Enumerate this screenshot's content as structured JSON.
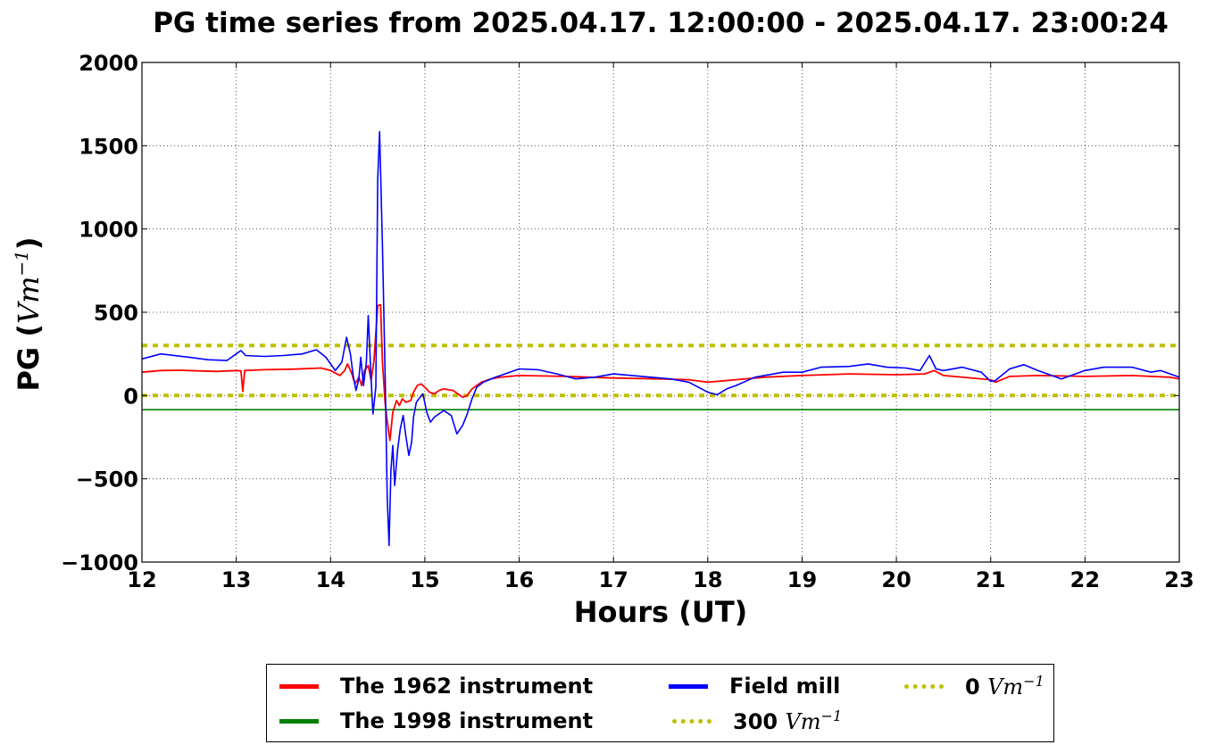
{
  "chart_data": {
    "type": "line",
    "title": "PG time series from 2025.04.17. 12:00:00 - 2025.04.17. 23:00:24",
    "xlabel": "Hours (UT)",
    "ylabel_prefix": "PG (",
    "ylabel_unit": "Vm",
    "ylabel_exp": "−1",
    "ylabel_suffix": ")",
    "xlim": [
      12,
      23
    ],
    "ylim": [
      -1000,
      2000
    ],
    "xticks": [
      12,
      13,
      14,
      15,
      16,
      17,
      18,
      19,
      20,
      21,
      22,
      23
    ],
    "xtick_labels": [
      "12",
      "13",
      "14",
      "15",
      "16",
      "17",
      "18",
      "19",
      "20",
      "21",
      "22",
      "23"
    ],
    "yticks": [
      -1000,
      -500,
      0,
      500,
      1000,
      1500,
      2000
    ],
    "ytick_labels": [
      "−1000",
      "−500",
      "0",
      "500",
      "1000",
      "1500",
      "2000"
    ],
    "grid": true,
    "legend_position": "bottom-center",
    "series": [
      {
        "name": "The 1962 instrument",
        "color": "#ff0000",
        "style": "solid",
        "points": [
          [
            12.0,
            140
          ],
          [
            12.2,
            150
          ],
          [
            12.4,
            152
          ],
          [
            12.6,
            148
          ],
          [
            12.8,
            145
          ],
          [
            13.0,
            150
          ],
          [
            13.05,
            148
          ],
          [
            13.07,
            25
          ],
          [
            13.09,
            150
          ],
          [
            13.3,
            155
          ],
          [
            13.6,
            158
          ],
          [
            13.9,
            165
          ],
          [
            14.0,
            150
          ],
          [
            14.1,
            120
          ],
          [
            14.15,
            150
          ],
          [
            14.18,
            190
          ],
          [
            14.22,
            140
          ],
          [
            14.26,
            70
          ],
          [
            14.3,
            110
          ],
          [
            14.33,
            60
          ],
          [
            14.36,
            150
          ],
          [
            14.4,
            180
          ],
          [
            14.43,
            90
          ],
          [
            14.46,
            210
          ],
          [
            14.5,
            540
          ],
          [
            14.53,
            545
          ],
          [
            14.55,
            200
          ],
          [
            14.58,
            -50
          ],
          [
            14.6,
            -150
          ],
          [
            14.63,
            -270
          ],
          [
            14.66,
            -100
          ],
          [
            14.7,
            -30
          ],
          [
            14.73,
            -60
          ],
          [
            14.76,
            -20
          ],
          [
            14.8,
            -40
          ],
          [
            14.85,
            -30
          ],
          [
            14.88,
            20
          ],
          [
            14.92,
            60
          ],
          [
            14.96,
            70
          ],
          [
            15.0,
            50
          ],
          [
            15.05,
            20
          ],
          [
            15.1,
            10
          ],
          [
            15.15,
            30
          ],
          [
            15.2,
            40
          ],
          [
            15.3,
            30
          ],
          [
            15.35,
            10
          ],
          [
            15.4,
            -10
          ],
          [
            15.45,
            0
          ],
          [
            15.5,
            40
          ],
          [
            15.6,
            80
          ],
          [
            15.7,
            100
          ],
          [
            15.8,
            110
          ],
          [
            16.0,
            120
          ],
          [
            16.5,
            115
          ],
          [
            17.0,
            105
          ],
          [
            17.5,
            100
          ],
          [
            17.8,
            95
          ],
          [
            18.0,
            80
          ],
          [
            18.3,
            95
          ],
          [
            18.6,
            110
          ],
          [
            19.0,
            120
          ],
          [
            19.5,
            130
          ],
          [
            20.0,
            125
          ],
          [
            20.3,
            130
          ],
          [
            20.4,
            150
          ],
          [
            20.5,
            120
          ],
          [
            21.0,
            95
          ],
          [
            21.05,
            80
          ],
          [
            21.2,
            115
          ],
          [
            21.5,
            120
          ],
          [
            22.0,
            115
          ],
          [
            22.5,
            120
          ],
          [
            22.9,
            110
          ],
          [
            23.0,
            100
          ]
        ]
      },
      {
        "name": "The 1998 instrument",
        "color": "#008000",
        "style": "solid",
        "points": [
          [
            12.0,
            -85
          ],
          [
            23.0,
            -85
          ]
        ]
      },
      {
        "name": "Field mill",
        "color": "#0000ff",
        "style": "solid",
        "points": [
          [
            12.0,
            220
          ],
          [
            12.2,
            250
          ],
          [
            12.5,
            230
          ],
          [
            12.7,
            215
          ],
          [
            12.9,
            210
          ],
          [
            13.0,
            250
          ],
          [
            13.05,
            270
          ],
          [
            13.1,
            240
          ],
          [
            13.3,
            235
          ],
          [
            13.5,
            240
          ],
          [
            13.7,
            250
          ],
          [
            13.85,
            275
          ],
          [
            13.95,
            230
          ],
          [
            14.05,
            150
          ],
          [
            14.12,
            200
          ],
          [
            14.17,
            350
          ],
          [
            14.21,
            250
          ],
          [
            14.24,
            120
          ],
          [
            14.27,
            30
          ],
          [
            14.3,
            100
          ],
          [
            14.32,
            230
          ],
          [
            14.35,
            60
          ],
          [
            14.38,
            200
          ],
          [
            14.4,
            480
          ],
          [
            14.43,
            100
          ],
          [
            14.45,
            -110
          ],
          [
            14.48,
            50
          ],
          [
            14.5,
            1300
          ],
          [
            14.52,
            1585
          ],
          [
            14.55,
            900
          ],
          [
            14.58,
            100
          ],
          [
            14.6,
            -600
          ],
          [
            14.62,
            -900
          ],
          [
            14.64,
            -450
          ],
          [
            14.66,
            -300
          ],
          [
            14.68,
            -540
          ],
          [
            14.71,
            -330
          ],
          [
            14.74,
            -200
          ],
          [
            14.77,
            -120
          ],
          [
            14.8,
            -250
          ],
          [
            14.83,
            -360
          ],
          [
            14.86,
            -280
          ],
          [
            14.88,
            -130
          ],
          [
            14.91,
            -40
          ],
          [
            14.95,
            -10
          ],
          [
            14.98,
            10
          ],
          [
            15.02,
            -100
          ],
          [
            15.06,
            -160
          ],
          [
            15.1,
            -130
          ],
          [
            15.15,
            -110
          ],
          [
            15.2,
            -90
          ],
          [
            15.28,
            -120
          ],
          [
            15.34,
            -230
          ],
          [
            15.4,
            -180
          ],
          [
            15.45,
            -110
          ],
          [
            15.5,
            -20
          ],
          [
            15.55,
            50
          ],
          [
            15.62,
            80
          ],
          [
            15.75,
            110
          ],
          [
            15.9,
            140
          ],
          [
            16.0,
            160
          ],
          [
            16.2,
            155
          ],
          [
            16.4,
            130
          ],
          [
            16.6,
            100
          ],
          [
            16.8,
            110
          ],
          [
            17.0,
            130
          ],
          [
            17.2,
            120
          ],
          [
            17.4,
            110
          ],
          [
            17.6,
            100
          ],
          [
            17.8,
            80
          ],
          [
            18.0,
            20
          ],
          [
            18.1,
            5
          ],
          [
            18.2,
            40
          ],
          [
            18.3,
            60
          ],
          [
            18.5,
            110
          ],
          [
            18.8,
            140
          ],
          [
            19.0,
            140
          ],
          [
            19.2,
            170
          ],
          [
            19.5,
            175
          ],
          [
            19.7,
            190
          ],
          [
            19.9,
            170
          ],
          [
            20.1,
            165
          ],
          [
            20.25,
            150
          ],
          [
            20.35,
            240
          ],
          [
            20.42,
            160
          ],
          [
            20.5,
            150
          ],
          [
            20.7,
            170
          ],
          [
            20.9,
            140
          ],
          [
            21.0,
            85
          ],
          [
            21.05,
            90
          ],
          [
            21.2,
            160
          ],
          [
            21.35,
            185
          ],
          [
            21.5,
            150
          ],
          [
            21.75,
            100
          ],
          [
            22.0,
            150
          ],
          [
            22.2,
            170
          ],
          [
            22.5,
            170
          ],
          [
            22.7,
            140
          ],
          [
            22.8,
            150
          ],
          [
            23.0,
            110
          ]
        ]
      },
      {
        "name": "300 Vm⁻¹",
        "color": "#bfbf00",
        "style": "dotted",
        "points": [
          [
            12.0,
            300
          ],
          [
            23.0,
            300
          ]
        ]
      },
      {
        "name": "0 Vm⁻¹",
        "color": "#bfbf00",
        "style": "dotted",
        "points": [
          [
            12.0,
            0
          ],
          [
            23.0,
            0
          ]
        ]
      }
    ]
  },
  "legend": {
    "items": [
      {
        "prefix": "The 1962 instrument",
        "math": "",
        "exp": "",
        "color": "#ff0000",
        "style": "solid"
      },
      {
        "prefix": "Field mill",
        "math": "",
        "exp": "",
        "color": "#0000ff",
        "style": "solid"
      },
      {
        "prefix": "0 ",
        "math": "Vm",
        "exp": "−1",
        "color": "#bfbf00",
        "style": "dotted"
      },
      {
        "prefix": "The 1998 instrument",
        "math": "",
        "exp": "",
        "color": "#008000",
        "style": "solid"
      },
      {
        "prefix": "300 ",
        "math": "Vm",
        "exp": "−1",
        "color": "#bfbf00",
        "style": "dotted"
      }
    ]
  }
}
